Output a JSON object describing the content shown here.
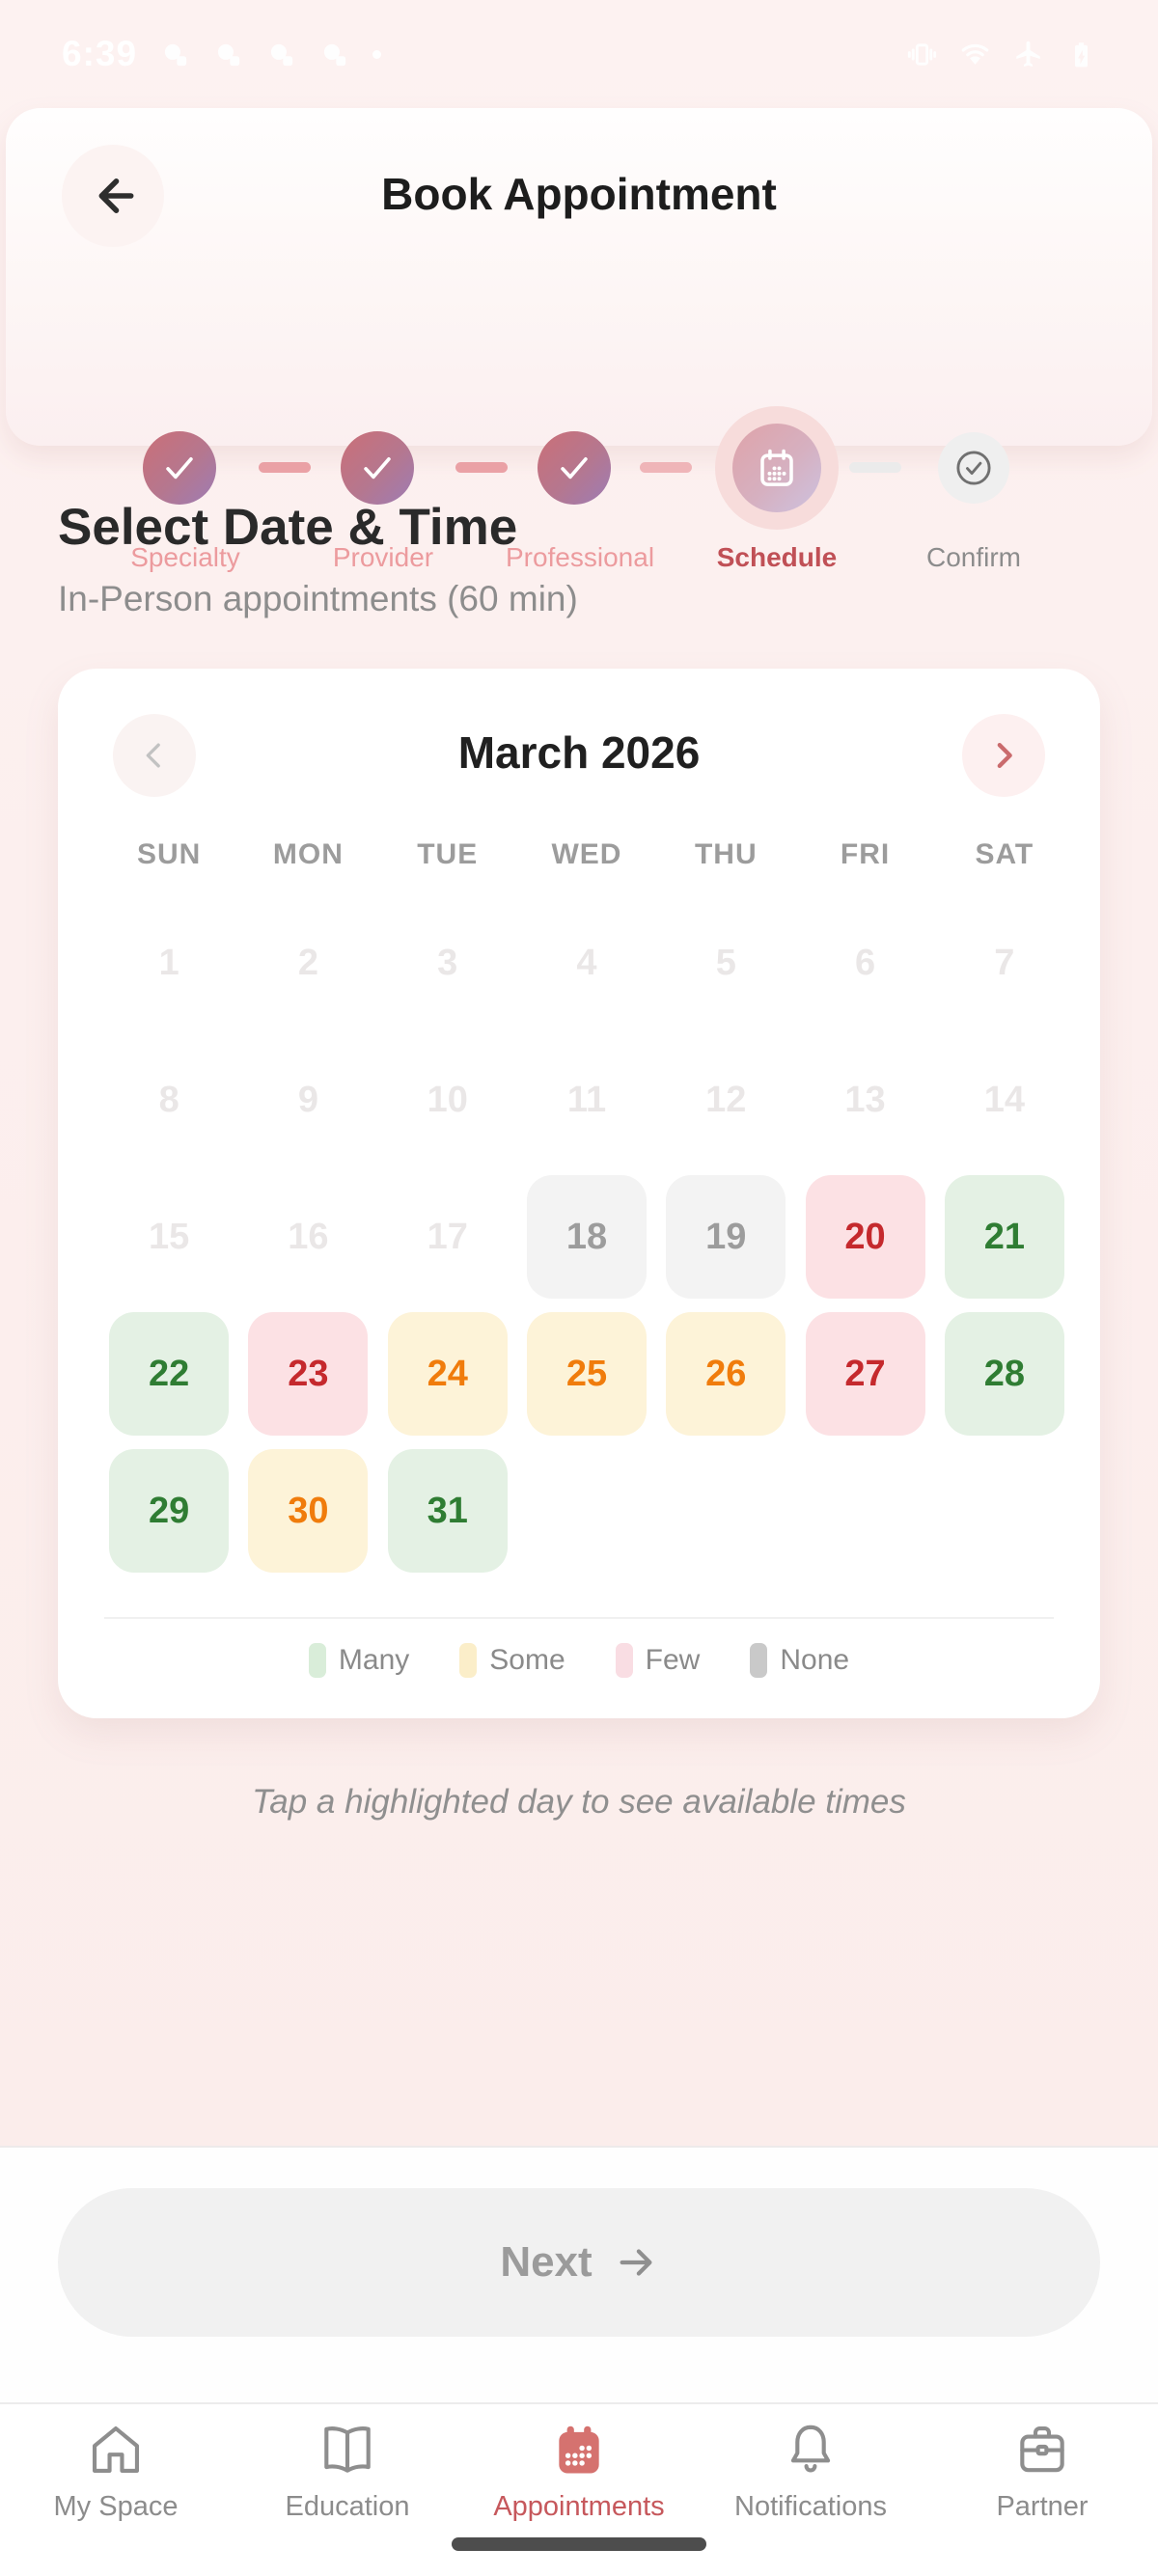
{
  "status_bar": {
    "time": "6:39",
    "left_icons": [
      "app-notification-icon",
      "app-notification-icon",
      "app-notification-icon",
      "app-notification-icon",
      "dot-icon"
    ],
    "right_icons": [
      "vibrate-icon",
      "wifi-icon",
      "airplane-mode-icon",
      "battery-charging-icon"
    ]
  },
  "header": {
    "title": "Book Appointment",
    "back_icon": "arrow-left-icon"
  },
  "stepper": {
    "steps": [
      {
        "label": "Specialty",
        "state": "completed",
        "icon": "check-icon"
      },
      {
        "label": "Provider",
        "state": "completed",
        "icon": "check-icon"
      },
      {
        "label": "Professional",
        "state": "completed",
        "icon": "check-icon"
      },
      {
        "label": "Schedule",
        "state": "active",
        "icon": "calendar-icon"
      },
      {
        "label": "Confirm",
        "state": "upcoming",
        "icon": "check-circle-icon"
      }
    ]
  },
  "section": {
    "heading": "Select Date & Time",
    "subheading": "In-Person appointments (60 min)"
  },
  "calendar": {
    "month_title": "March 2026",
    "prev_icon": "chevron-left-icon",
    "next_icon": "chevron-right-icon",
    "weekdays": [
      "SUN",
      "MON",
      "TUE",
      "WED",
      "THU",
      "FRI",
      "SAT"
    ],
    "days": [
      {
        "day": 1,
        "availability": "past"
      },
      {
        "day": 2,
        "availability": "past"
      },
      {
        "day": 3,
        "availability": "past"
      },
      {
        "day": 4,
        "availability": "past"
      },
      {
        "day": 5,
        "availability": "past"
      },
      {
        "day": 6,
        "availability": "past"
      },
      {
        "day": 7,
        "availability": "past"
      },
      {
        "day": 8,
        "availability": "past"
      },
      {
        "day": 9,
        "availability": "past"
      },
      {
        "day": 10,
        "availability": "past"
      },
      {
        "day": 11,
        "availability": "past"
      },
      {
        "day": 12,
        "availability": "past"
      },
      {
        "day": 13,
        "availability": "past"
      },
      {
        "day": 14,
        "availability": "past"
      },
      {
        "day": 15,
        "availability": "past"
      },
      {
        "day": 16,
        "availability": "past"
      },
      {
        "day": 17,
        "availability": "past"
      },
      {
        "day": 18,
        "availability": "none"
      },
      {
        "day": 19,
        "availability": "none"
      },
      {
        "day": 20,
        "availability": "few"
      },
      {
        "day": 21,
        "availability": "many"
      },
      {
        "day": 22,
        "availability": "many"
      },
      {
        "day": 23,
        "availability": "few"
      },
      {
        "day": 24,
        "availability": "some"
      },
      {
        "day": 25,
        "availability": "some"
      },
      {
        "day": 26,
        "availability": "some"
      },
      {
        "day": 27,
        "availability": "few"
      },
      {
        "day": 28,
        "availability": "many"
      },
      {
        "day": 29,
        "availability": "many"
      },
      {
        "day": 30,
        "availability": "some"
      },
      {
        "day": 31,
        "availability": "many"
      }
    ],
    "legend": [
      {
        "key": "many",
        "label": "Many"
      },
      {
        "key": "some",
        "label": "Some"
      },
      {
        "key": "few",
        "label": "Few"
      },
      {
        "key": "none",
        "label": "None"
      }
    ]
  },
  "colors": {
    "accent": "#c6585c",
    "availability": {
      "many": {
        "bg": "#e4f1e4",
        "text": "#2f7d33"
      },
      "some": {
        "bg": "#fdf3d8",
        "text": "#f07c0c"
      },
      "few": {
        "bg": "#fce1e4",
        "text": "#c5292d"
      },
      "none": {
        "bg": "#f3f3f3",
        "text": "#9c9c9c"
      },
      "past": {
        "bg": "",
        "text": "#eae7e7"
      }
    },
    "legend_swatch": {
      "many": "#d9edd9",
      "some": "#fbeec9",
      "few": "#f9dde3",
      "none": "#c9c9c9"
    }
  },
  "hint": "Tap a highlighted day to see available times",
  "next_button": {
    "label": "Next",
    "icon": "arrow-right-icon",
    "enabled": false
  },
  "bottom_nav": {
    "items": [
      {
        "label": "My Space",
        "icon": "home-icon",
        "active": false
      },
      {
        "label": "Education",
        "icon": "book-icon",
        "active": false
      },
      {
        "label": "Appointments",
        "icon": "calendar-icon",
        "active": true
      },
      {
        "label": "Notifications",
        "icon": "bell-icon",
        "active": false
      },
      {
        "label": "Partner",
        "icon": "briefcase-icon",
        "active": false
      }
    ]
  }
}
